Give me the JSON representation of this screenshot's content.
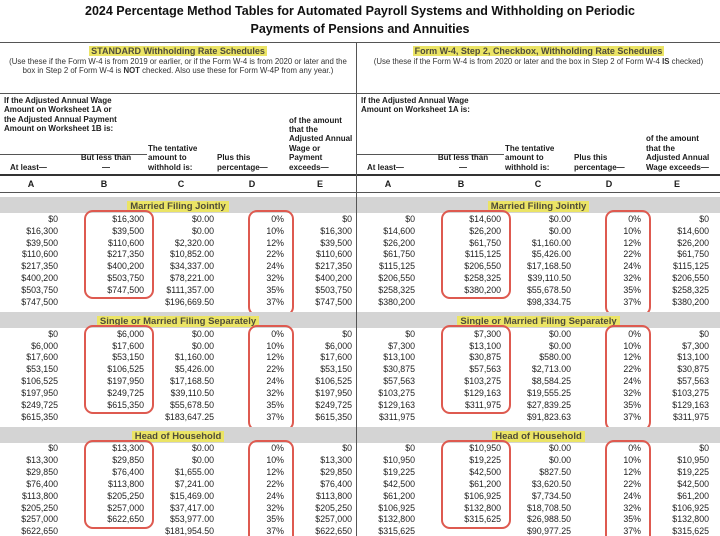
{
  "title_line1": "2024 Percentage Method Tables for Automated Payroll Systems and Withholding on Periodic",
  "title_line2": "Payments of Pensions and Annuities",
  "colors": {
    "highlight_yellow": "#ebe465",
    "section_band_gray": "#d4d4d4",
    "annotation_red": "#de5a50"
  },
  "left": {
    "heading": "STANDARD Withholding Rate Schedules",
    "note_pre": "(Use these if the Form W-4 is from 2019 or earlier, or if the Form W-4 is from 2020 or later and the box in Step 2 of Form W-4 is ",
    "note_bold": "NOT",
    "note_post": " checked. Also use these for Form W-4P from any year.)",
    "wage_condition": "If the Adjusted Annual Wage Amount on Worksheet 1A or the Adjusted Annual Payment Amount on Worksheet 1B is:",
    "col_at_least": "At least—",
    "col_but_less": "But less than—",
    "col_c": "The tentative amount to withhold is:",
    "col_d": "Plus this percentage—",
    "col_e": "of the amount that the Adjusted Annual Wage or Payment exceeds—",
    "letters": [
      "A",
      "B",
      "C",
      "D",
      "E"
    ],
    "sections": [
      {
        "title": "Married Filing Jointly",
        "rows": [
          [
            "$0",
            "$16,300",
            "$0.00",
            "0%",
            "$0"
          ],
          [
            "$16,300",
            "$39,500",
            "$0.00",
            "10%",
            "$16,300"
          ],
          [
            "$39,500",
            "$110,600",
            "$2,320.00",
            "12%",
            "$39,500"
          ],
          [
            "$110,600",
            "$217,350",
            "$10,852.00",
            "22%",
            "$110,600"
          ],
          [
            "$217,350",
            "$400,200",
            "$34,337.00",
            "24%",
            "$217,350"
          ],
          [
            "$400,200",
            "$503,750",
            "$78,221.00",
            "32%",
            "$400,200"
          ],
          [
            "$503,750",
            "$747,500",
            "$111,357.00",
            "35%",
            "$503,750"
          ],
          [
            "$747,500",
            "",
            "$196,669.50",
            "37%",
            "$747,500"
          ]
        ]
      },
      {
        "title": "Single or Married Filing Separately",
        "rows": [
          [
            "$0",
            "$6,000",
            "$0.00",
            "0%",
            "$0"
          ],
          [
            "$6,000",
            "$17,600",
            "$0.00",
            "10%",
            "$6,000"
          ],
          [
            "$17,600",
            "$53,150",
            "$1,160.00",
            "12%",
            "$17,600"
          ],
          [
            "$53,150",
            "$106,525",
            "$5,426.00",
            "22%",
            "$53,150"
          ],
          [
            "$106,525",
            "$197,950",
            "$17,168.50",
            "24%",
            "$106,525"
          ],
          [
            "$197,950",
            "$249,725",
            "$39,110.50",
            "32%",
            "$197,950"
          ],
          [
            "$249,725",
            "$615,350",
            "$55,678.50",
            "35%",
            "$249,725"
          ],
          [
            "$615,350",
            "",
            "$183,647.25",
            "37%",
            "$615,350"
          ]
        ]
      },
      {
        "title": "Head of Household",
        "rows": [
          [
            "$0",
            "$13,300",
            "$0.00",
            "0%",
            "$0"
          ],
          [
            "$13,300",
            "$29,850",
            "$0.00",
            "10%",
            "$13,300"
          ],
          [
            "$29,850",
            "$76,400",
            "$1,655.00",
            "12%",
            "$29,850"
          ],
          [
            "$76,400",
            "$113,800",
            "$7,241.00",
            "22%",
            "$76,400"
          ],
          [
            "$113,800",
            "$205,250",
            "$15,469.00",
            "24%",
            "$113,800"
          ],
          [
            "$205,250",
            "$257,000",
            "$37,417.00",
            "32%",
            "$205,250"
          ],
          [
            "$257,000",
            "$622,650",
            "$53,977.00",
            "35%",
            "$257,000"
          ],
          [
            "$622,650",
            "",
            "$181,954.50",
            "37%",
            "$622,650"
          ]
        ]
      }
    ]
  },
  "right": {
    "heading": "Form W-4, Step 2, Checkbox, Withholding Rate Schedules",
    "note_pre": "(Use these if the Form W-4 is from 2020 or later and the box in Step 2 of Form W-4 ",
    "note_bold": "IS",
    "note_post": " checked)",
    "wage_condition": "If the Adjusted Annual Wage Amount on Worksheet 1A is:",
    "col_at_least": "At least—",
    "col_but_less": "But less than—",
    "col_c": "The tentative amount to withhold is:",
    "col_d": "Plus this percentage—",
    "col_e": "of the amount that the Adjusted Annual Wage exceeds—",
    "letters": [
      "A",
      "B",
      "C",
      "D",
      "E"
    ],
    "sections": [
      {
        "title": "Married Filing Jointly",
        "rows": [
          [
            "$0",
            "$14,600",
            "$0.00",
            "0%",
            "$0"
          ],
          [
            "$14,600",
            "$26,200",
            "$0.00",
            "10%",
            "$14,600"
          ],
          [
            "$26,200",
            "$61,750",
            "$1,160.00",
            "12%",
            "$26,200"
          ],
          [
            "$61,750",
            "$115,125",
            "$5,426.00",
            "22%",
            "$61,750"
          ],
          [
            "$115,125",
            "$206,550",
            "$17,168.50",
            "24%",
            "$115,125"
          ],
          [
            "$206,550",
            "$258,325",
            "$39,110.50",
            "32%",
            "$206,550"
          ],
          [
            "$258,325",
            "$380,200",
            "$55,678.50",
            "35%",
            "$258,325"
          ],
          [
            "$380,200",
            "",
            "$98,334.75",
            "37%",
            "$380,200"
          ]
        ]
      },
      {
        "title": "Single or Married Filing Separately",
        "rows": [
          [
            "$0",
            "$7,300",
            "$0.00",
            "0%",
            "$0"
          ],
          [
            "$7,300",
            "$13,100",
            "$0.00",
            "10%",
            "$7,300"
          ],
          [
            "$13,100",
            "$30,875",
            "$580.00",
            "12%",
            "$13,100"
          ],
          [
            "$30,875",
            "$57,563",
            "$2,713.00",
            "22%",
            "$30,875"
          ],
          [
            "$57,563",
            "$103,275",
            "$8,584.25",
            "24%",
            "$57,563"
          ],
          [
            "$103,275",
            "$129,163",
            "$19,555.25",
            "32%",
            "$103,275"
          ],
          [
            "$129,163",
            "$311,975",
            "$27,839.25",
            "35%",
            "$129,163"
          ],
          [
            "$311,975",
            "",
            "$91,823.63",
            "37%",
            "$311,975"
          ]
        ]
      },
      {
        "title": "Head of Household",
        "rows": [
          [
            "$0",
            "$10,950",
            "$0.00",
            "0%",
            "$0"
          ],
          [
            "$10,950",
            "$19,225",
            "$0.00",
            "10%",
            "$10,950"
          ],
          [
            "$19,225",
            "$42,500",
            "$827.50",
            "12%",
            "$19,225"
          ],
          [
            "$42,500",
            "$61,200",
            "$3,620.50",
            "22%",
            "$42,500"
          ],
          [
            "$61,200",
            "$106,925",
            "$7,734.50",
            "24%",
            "$61,200"
          ],
          [
            "$106,925",
            "$132,800",
            "$18,708.50",
            "32%",
            "$106,925"
          ],
          [
            "$132,800",
            "$315,625",
            "$26,988.50",
            "35%",
            "$132,800"
          ],
          [
            "$315,625",
            "",
            "$90,977.25",
            "37%",
            "$315,625"
          ]
        ]
      }
    ]
  }
}
